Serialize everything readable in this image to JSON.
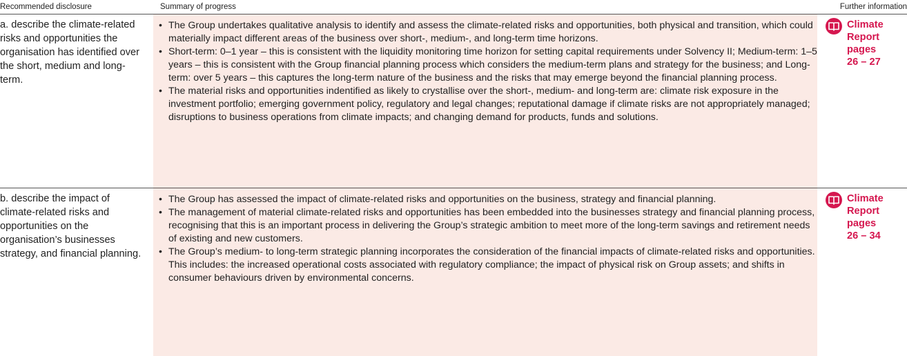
{
  "header": {
    "disclosure": "Recommended disclosure",
    "summary": "Summary of progress",
    "further": "Further information"
  },
  "rows": [
    {
      "disclosure": "a. describe the climate-related risks and opportunities the organisation has identified over the short, medium and long-term.",
      "bullets": [
        "The Group undertakes qualitative analysis to identify and assess the climate-related risks and opportunities, both physical and transition, which could materially impact different areas of the business over short-, medium-, and long-term time horizons.",
        "Short-term: 0–1 year – this is consistent with the liquidity monitoring time horizon for setting capital requirements under Solvency II; Medium-term: 1–5 years – this is consistent with the Group financial planning process which considers the medium-term plans and strategy for the business; and Long-term: over 5 years – this captures the long-term nature of the business and the risks that may emerge beyond the financial planning process.",
        "The material risks and opportunities indentified as likely to crystallise over the short-, medium- and long-term are: climate risk exposure in the investment portfolio; emerging government policy, regulatory and legal changes; reputational damage if climate risks are not appropriately managed; disruptions to business operations from climate impacts; and changing demand for products, funds and solutions."
      ],
      "link": "Climate Report pages 26 – 27"
    },
    {
      "disclosure": "b. describe the impact of climate-related risks and opportunities on the organisation’s businesses strategy, and financial planning.",
      "bullets": [
        "The Group has assessed the impact of climate-related risks and opportunities on the business, strategy and financial planning.",
        "The management of material climate-related risks and opportunities has been embedded into the businesses strategy and financial planning process, recognising that this is an important process in delivering the Group’s strategic ambition to meet more of the long-term savings and retirement needs of existing and new customers.",
        "The Group’s medium- to long-term strategic planning incorporates the consideration of the financial impacts of climate-related risks and opportunities. This includes: the increased operational costs associated with regulatory compliance; the impact of physical risk on Group assets; and shifts in consumer behaviours driven by environmental concerns."
      ],
      "link": "Climate Report pages 26 – 34"
    }
  ]
}
